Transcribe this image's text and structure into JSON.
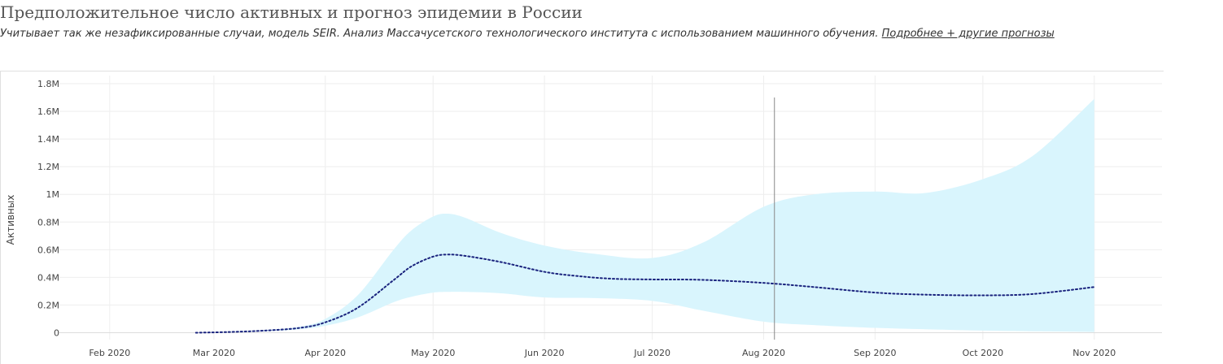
{
  "header": {
    "title": "Предположительное число активных и прогноз эпидемии в России",
    "subtitle": "Учитывает так же незафиксированные случаи, модель SEIR. Анализ Массачусетского технологического института с использованием машинного обучения.",
    "link_label": "Подробнее + другие прогнозы"
  },
  "chart_data": {
    "type": "line",
    "ylabel": "Активных",
    "x_tick_labels": [
      "Feb 2020",
      "Mar 2020",
      "Apr 2020",
      "May 2020",
      "Jun 2020",
      "Jul 2020",
      "Aug 2020",
      "Sep 2020",
      "Oct 2020",
      "Nov 2020"
    ],
    "x_tick_dates": [
      "2020-02-01",
      "2020-03-01",
      "2020-04-01",
      "2020-05-01",
      "2020-06-01",
      "2020-07-01",
      "2020-08-01",
      "2020-09-01",
      "2020-10-01",
      "2020-11-01"
    ],
    "y_ticks": [
      0,
      200000,
      400000,
      600000,
      800000,
      1000000,
      1200000,
      1400000,
      1600000,
      1800000
    ],
    "y_tick_labels": [
      "0",
      "0.2M",
      "0.4M",
      "0.6M",
      "0.8M",
      "1M",
      "1.2M",
      "1.4M",
      "1.6M",
      "1.8M"
    ],
    "xlim": [
      "2020-01-18",
      "2020-11-04"
    ],
    "ylim": [
      -50000,
      1800000
    ],
    "grid": true,
    "marker_date": "2020-08-04",
    "colors": {
      "line": "#1a237e",
      "band": "#d9f5fd",
      "grid": "#eeeeee",
      "marker": "#888888"
    },
    "series": [
      {
        "style": "dotted",
        "x": [
          "2020-02-25",
          "2020-03-05",
          "2020-03-15",
          "2020-03-25",
          "2020-04-01",
          "2020-04-10",
          "2020-04-20",
          "2020-04-25",
          "2020-05-01",
          "2020-05-05",
          "2020-05-10",
          "2020-05-20",
          "2020-06-01",
          "2020-06-10",
          "2020-06-20",
          "2020-07-01",
          "2020-07-15",
          "2020-08-01",
          "2020-08-15",
          "2020-09-01",
          "2020-09-15",
          "2020-10-01",
          "2020-10-15",
          "2020-11-01"
        ],
        "y": [
          0,
          5000,
          15000,
          35000,
          75000,
          180000,
          380000,
          480000,
          550000,
          565000,
          555000,
          510000,
          440000,
          410000,
          390000,
          385000,
          382000,
          360000,
          330000,
          290000,
          275000,
          270000,
          280000,
          330000
        ]
      }
    ],
    "band": {
      "x": [
        "2020-02-25",
        "2020-03-15",
        "2020-03-25",
        "2020-04-01",
        "2020-04-10",
        "2020-04-20",
        "2020-04-25",
        "2020-05-01",
        "2020-05-05",
        "2020-05-10",
        "2020-05-20",
        "2020-06-01",
        "2020-06-15",
        "2020-07-01",
        "2020-07-15",
        "2020-08-01",
        "2020-08-15",
        "2020-09-01",
        "2020-09-15",
        "2020-10-01",
        "2020-10-15",
        "2020-11-01"
      ],
      "lower": [
        0,
        10000,
        25000,
        50000,
        110000,
        220000,
        260000,
        290000,
        295000,
        295000,
        285000,
        255000,
        250000,
        230000,
        160000,
        80000,
        55000,
        35000,
        25000,
        15000,
        10000,
        5000
      ],
      "upper": [
        0,
        20000,
        45000,
        100000,
        270000,
        600000,
        740000,
        840000,
        860000,
        830000,
        720000,
        630000,
        570000,
        540000,
        650000,
        910000,
        1000000,
        1020000,
        1010000,
        1110000,
        1280000,
        1690000
      ]
    }
  }
}
